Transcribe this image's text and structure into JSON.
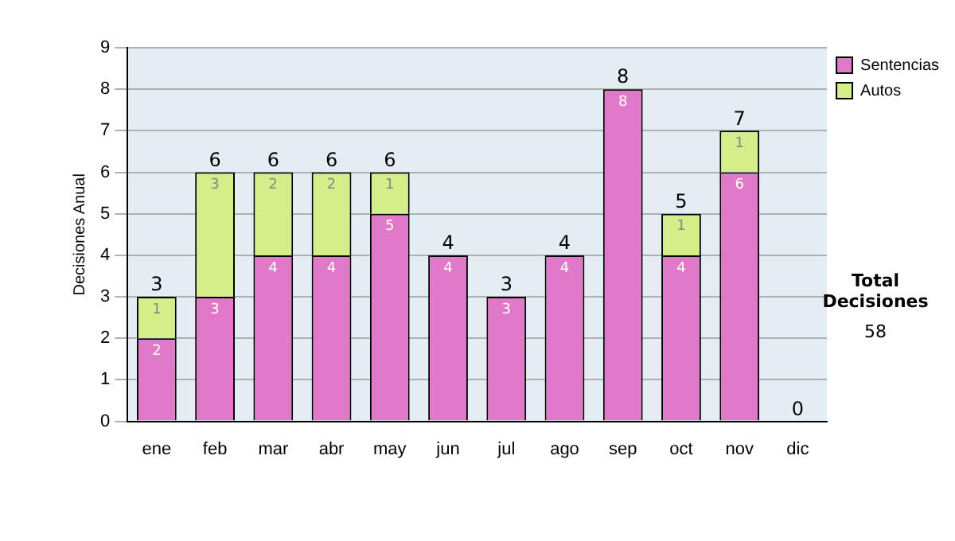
{
  "chart_data": {
    "type": "bar",
    "ylabel": "Decisiones Anual",
    "categories": [
      "ene",
      "feb",
      "mar",
      "abr",
      "may",
      "jun",
      "jul",
      "ago",
      "sep",
      "oct",
      "nov",
      "dic"
    ],
    "series": [
      {
        "name": "Sentencias",
        "color": "#e07ac8",
        "values": [
          2,
          3,
          4,
          4,
          5,
          4,
          3,
          4,
          8,
          4,
          6,
          0
        ],
        "value_labels": [
          "2",
          "3",
          "4",
          "4",
          "5",
          "4",
          "3",
          "4",
          "8",
          "4",
          "6",
          null
        ]
      },
      {
        "name": "Autos",
        "color": "#d4ee8a",
        "values": [
          1,
          3,
          2,
          2,
          1,
          0,
          0,
          0,
          0,
          1,
          1,
          0
        ],
        "value_labels": [
          "1",
          "3",
          "2",
          "2",
          "1",
          null,
          null,
          null,
          null,
          "1",
          "1",
          null
        ]
      }
    ],
    "stacked": true,
    "totals": [
      "3",
      "6",
      "6",
      "6",
      "6",
      "4",
      "3",
      "4",
      "8",
      "5",
      "7",
      "0"
    ],
    "ylim": [
      0,
      9
    ],
    "yticks": [
      0,
      1,
      2,
      3,
      4,
      5,
      6,
      7,
      8,
      9
    ],
    "grid": "y",
    "legend": "right",
    "annotations": [
      "Total Decisiones",
      "58"
    ]
  }
}
